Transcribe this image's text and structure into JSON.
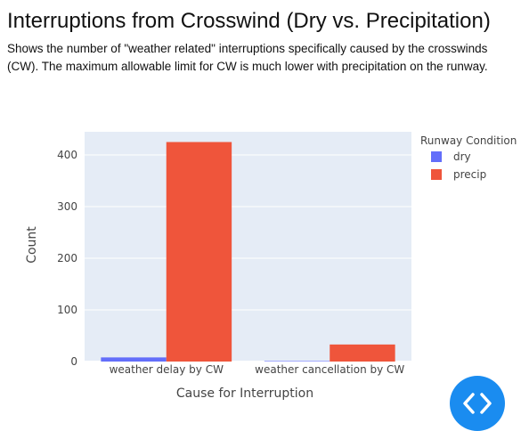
{
  "header": {
    "title": "Interruptions from Crosswind (Dry vs. Precipitation)",
    "subtitle": "Shows the number of \"weather related\" interruptions specifically caused by the crosswinds (CW). The maximum allowable limit for CW is much lower with precipitation on the runway."
  },
  "chart_data": {
    "type": "bar",
    "title": "",
    "xlabel": "Cause for Interruption",
    "ylabel": "Count",
    "categories": [
      "weather delay by CW",
      "weather cancellation by CW"
    ],
    "series": [
      {
        "name": "dry",
        "values": [
          8,
          1
        ],
        "color": "#636efa"
      },
      {
        "name": "precip",
        "values": [
          425,
          33
        ],
        "color": "#ef553b"
      }
    ],
    "ylim": [
      0,
      450
    ],
    "yticks": [
      0,
      100,
      200,
      300,
      400
    ],
    "grid": true,
    "legend": {
      "title": "Runway Condition",
      "placement": "top-right"
    },
    "plot_background": "#e5ecf6"
  },
  "fab": {
    "icon": "code-brackets-icon",
    "color": "#1a8cf0"
  }
}
